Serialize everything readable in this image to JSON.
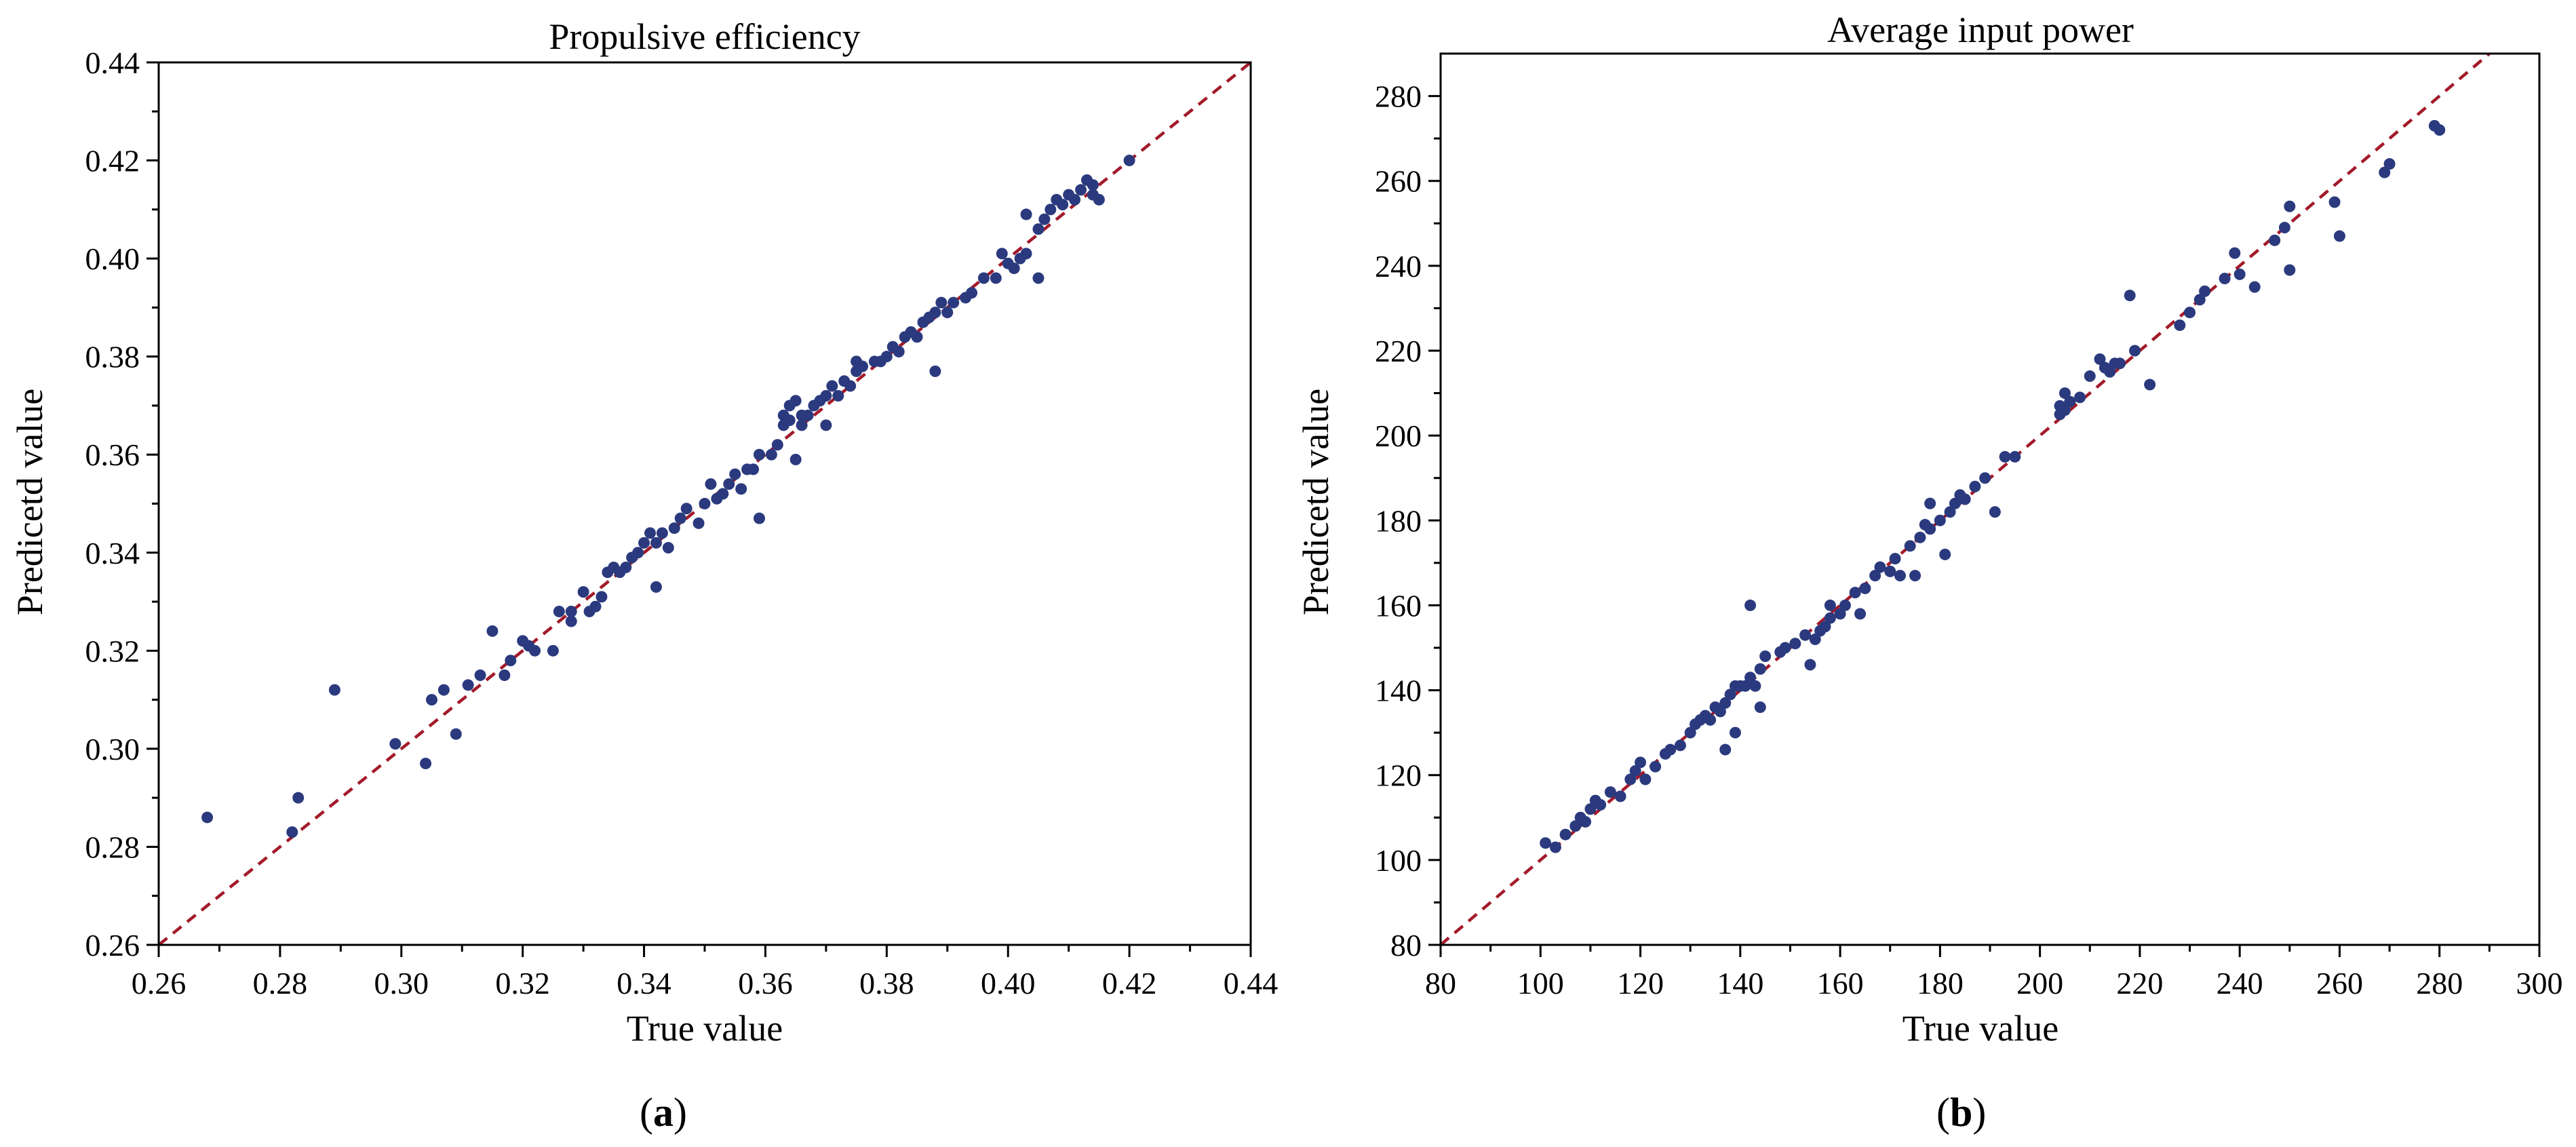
{
  "colors": {
    "point": "#2b3a7e",
    "reference_line": "#a31a2a",
    "axis": "#000000"
  },
  "chart_data": [
    {
      "type": "scatter",
      "panel_label": "a",
      "title": "Propulsive efficiency",
      "xlabel": "True value",
      "ylabel": "Predicetd value",
      "xlim": [
        0.26,
        0.44
      ],
      "ylim": [
        0.26,
        0.44
      ],
      "xticks": [
        "0.26",
        "0.28",
        "0.30",
        "0.32",
        "0.34",
        "0.36",
        "0.38",
        "0.40",
        "0.42",
        "0.44"
      ],
      "yticks": [
        "0.26",
        "0.28",
        "0.30",
        "0.32",
        "0.34",
        "0.36",
        "0.38",
        "0.40",
        "0.42",
        "0.44"
      ],
      "reference_line": "y = x",
      "grid": false,
      "points": [
        [
          0.268,
          0.286
        ],
        [
          0.282,
          0.283
        ],
        [
          0.283,
          0.29
        ],
        [
          0.289,
          0.312
        ],
        [
          0.299,
          0.301
        ],
        [
          0.304,
          0.297
        ],
        [
          0.305,
          0.31
        ],
        [
          0.307,
          0.312
        ],
        [
          0.309,
          0.303
        ],
        [
          0.311,
          0.313
        ],
        [
          0.313,
          0.315
        ],
        [
          0.315,
          0.324
        ],
        [
          0.317,
          0.315
        ],
        [
          0.318,
          0.318
        ],
        [
          0.32,
          0.322
        ],
        [
          0.321,
          0.321
        ],
        [
          0.322,
          0.32
        ],
        [
          0.325,
          0.32
        ],
        [
          0.326,
          0.328
        ],
        [
          0.328,
          0.326
        ],
        [
          0.328,
          0.328
        ],
        [
          0.33,
          0.332
        ],
        [
          0.331,
          0.328
        ],
        [
          0.332,
          0.329
        ],
        [
          0.333,
          0.331
        ],
        [
          0.334,
          0.336
        ],
        [
          0.335,
          0.337
        ],
        [
          0.336,
          0.336
        ],
        [
          0.337,
          0.337
        ],
        [
          0.338,
          0.339
        ],
        [
          0.339,
          0.34
        ],
        [
          0.34,
          0.342
        ],
        [
          0.341,
          0.344
        ],
        [
          0.342,
          0.342
        ],
        [
          0.342,
          0.333
        ],
        [
          0.343,
          0.344
        ],
        [
          0.344,
          0.341
        ],
        [
          0.345,
          0.345
        ],
        [
          0.346,
          0.347
        ],
        [
          0.347,
          0.349
        ],
        [
          0.349,
          0.346
        ],
        [
          0.35,
          0.35
        ],
        [
          0.351,
          0.354
        ],
        [
          0.352,
          0.351
        ],
        [
          0.353,
          0.352
        ],
        [
          0.354,
          0.354
        ],
        [
          0.355,
          0.356
        ],
        [
          0.356,
          0.353
        ],
        [
          0.357,
          0.357
        ],
        [
          0.358,
          0.357
        ],
        [
          0.359,
          0.36
        ],
        [
          0.359,
          0.347
        ],
        [
          0.361,
          0.36
        ],
        [
          0.362,
          0.362
        ],
        [
          0.363,
          0.366
        ],
        [
          0.363,
          0.368
        ],
        [
          0.364,
          0.367
        ],
        [
          0.364,
          0.37
        ],
        [
          0.365,
          0.371
        ],
        [
          0.365,
          0.359
        ],
        [
          0.366,
          0.366
        ],
        [
          0.366,
          0.368
        ],
        [
          0.367,
          0.368
        ],
        [
          0.368,
          0.37
        ],
        [
          0.369,
          0.371
        ],
        [
          0.37,
          0.366
        ],
        [
          0.37,
          0.372
        ],
        [
          0.371,
          0.374
        ],
        [
          0.372,
          0.372
        ],
        [
          0.373,
          0.375
        ],
        [
          0.374,
          0.374
        ],
        [
          0.375,
          0.377
        ],
        [
          0.375,
          0.379
        ],
        [
          0.376,
          0.378
        ],
        [
          0.378,
          0.379
        ],
        [
          0.379,
          0.379
        ],
        [
          0.38,
          0.38
        ],
        [
          0.381,
          0.382
        ],
        [
          0.382,
          0.381
        ],
        [
          0.383,
          0.384
        ],
        [
          0.384,
          0.385
        ],
        [
          0.385,
          0.384
        ],
        [
          0.386,
          0.387
        ],
        [
          0.387,
          0.388
        ],
        [
          0.388,
          0.389
        ],
        [
          0.388,
          0.377
        ],
        [
          0.389,
          0.391
        ],
        [
          0.39,
          0.389
        ],
        [
          0.391,
          0.391
        ],
        [
          0.393,
          0.392
        ],
        [
          0.394,
          0.393
        ],
        [
          0.396,
          0.396
        ],
        [
          0.398,
          0.396
        ],
        [
          0.399,
          0.401
        ],
        [
          0.4,
          0.399
        ],
        [
          0.401,
          0.398
        ],
        [
          0.402,
          0.4
        ],
        [
          0.403,
          0.401
        ],
        [
          0.403,
          0.409
        ],
        [
          0.405,
          0.396
        ],
        [
          0.405,
          0.406
        ],
        [
          0.406,
          0.408
        ],
        [
          0.407,
          0.41
        ],
        [
          0.408,
          0.412
        ],
        [
          0.409,
          0.411
        ],
        [
          0.41,
          0.413
        ],
        [
          0.411,
          0.412
        ],
        [
          0.412,
          0.414
        ],
        [
          0.413,
          0.416
        ],
        [
          0.414,
          0.415
        ],
        [
          0.414,
          0.413
        ],
        [
          0.415,
          0.412
        ],
        [
          0.42,
          0.42
        ]
      ]
    },
    {
      "type": "scatter",
      "panel_label": "b",
      "title": "Average input power",
      "xlabel": "True value",
      "ylabel": "Predicetd value",
      "xlim": [
        80,
        300
      ],
      "ylim": [
        80,
        290
      ],
      "xticks": [
        "80",
        "100",
        "120",
        "140",
        "160",
        "180",
        "200",
        "220",
        "240",
        "260",
        "280",
        "300"
      ],
      "yticks": [
        "80",
        "100",
        "120",
        "140",
        "160",
        "180",
        "200",
        "220",
        "240",
        "260",
        "280"
      ],
      "reference_line": "y = x",
      "grid": false,
      "points": [
        [
          101,
          104
        ],
        [
          103,
          103
        ],
        [
          105,
          106
        ],
        [
          107,
          108
        ],
        [
          108,
          110
        ],
        [
          109,
          109
        ],
        [
          110,
          112
        ],
        [
          111,
          114
        ],
        [
          112,
          113
        ],
        [
          114,
          116
        ],
        [
          116,
          115
        ],
        [
          118,
          119
        ],
        [
          119,
          121
        ],
        [
          120,
          123
        ],
        [
          121,
          119
        ],
        [
          123,
          122
        ],
        [
          125,
          125
        ],
        [
          126,
          126
        ],
        [
          128,
          127
        ],
        [
          130,
          130
        ],
        [
          131,
          132
        ],
        [
          132,
          133
        ],
        [
          133,
          134
        ],
        [
          134,
          133
        ],
        [
          135,
          136
        ],
        [
          136,
          135
        ],
        [
          137,
          126
        ],
        [
          137,
          137
        ],
        [
          138,
          139
        ],
        [
          139,
          130
        ],
        [
          139,
          141
        ],
        [
          140,
          141
        ],
        [
          141,
          141
        ],
        [
          142,
          160
        ],
        [
          142,
          143
        ],
        [
          143,
          141
        ],
        [
          144,
          145
        ],
        [
          144,
          136
        ],
        [
          145,
          148
        ],
        [
          148,
          149
        ],
        [
          149,
          150
        ],
        [
          151,
          151
        ],
        [
          153,
          153
        ],
        [
          154,
          146
        ],
        [
          155,
          152
        ],
        [
          156,
          154
        ],
        [
          157,
          155
        ],
        [
          158,
          157
        ],
        [
          158,
          160
        ],
        [
          160,
          158
        ],
        [
          161,
          160
        ],
        [
          163,
          163
        ],
        [
          164,
          158
        ],
        [
          165,
          164
        ],
        [
          167,
          167
        ],
        [
          168,
          169
        ],
        [
          170,
          168
        ],
        [
          171,
          171
        ],
        [
          172,
          167
        ],
        [
          174,
          174
        ],
        [
          175,
          167
        ],
        [
          176,
          176
        ],
        [
          177,
          179
        ],
        [
          178,
          178
        ],
        [
          178,
          184
        ],
        [
          180,
          180
        ],
        [
          181,
          172
        ],
        [
          182,
          182
        ],
        [
          183,
          184
        ],
        [
          184,
          186
        ],
        [
          185,
          185
        ],
        [
          187,
          188
        ],
        [
          189,
          190
        ],
        [
          191,
          182
        ],
        [
          193,
          195
        ],
        [
          195,
          195
        ],
        [
          204,
          205
        ],
        [
          204,
          207
        ],
        [
          205,
          206
        ],
        [
          205,
          210
        ],
        [
          206,
          208
        ],
        [
          208,
          209
        ],
        [
          210,
          214
        ],
        [
          212,
          218
        ],
        [
          213,
          216
        ],
        [
          214,
          215
        ],
        [
          215,
          217
        ],
        [
          216,
          217
        ],
        [
          218,
          233
        ],
        [
          219,
          220
        ],
        [
          222,
          212
        ],
        [
          228,
          226
        ],
        [
          230,
          229
        ],
        [
          232,
          232
        ],
        [
          233,
          234
        ],
        [
          237,
          237
        ],
        [
          239,
          243
        ],
        [
          240,
          238
        ],
        [
          243,
          235
        ],
        [
          247,
          246
        ],
        [
          249,
          249
        ],
        [
          250,
          254
        ],
        [
          250,
          239
        ],
        [
          259,
          255
        ],
        [
          260,
          247
        ],
        [
          269,
          262
        ],
        [
          270,
          264
        ],
        [
          279,
          273
        ],
        [
          280,
          272
        ]
      ]
    }
  ]
}
